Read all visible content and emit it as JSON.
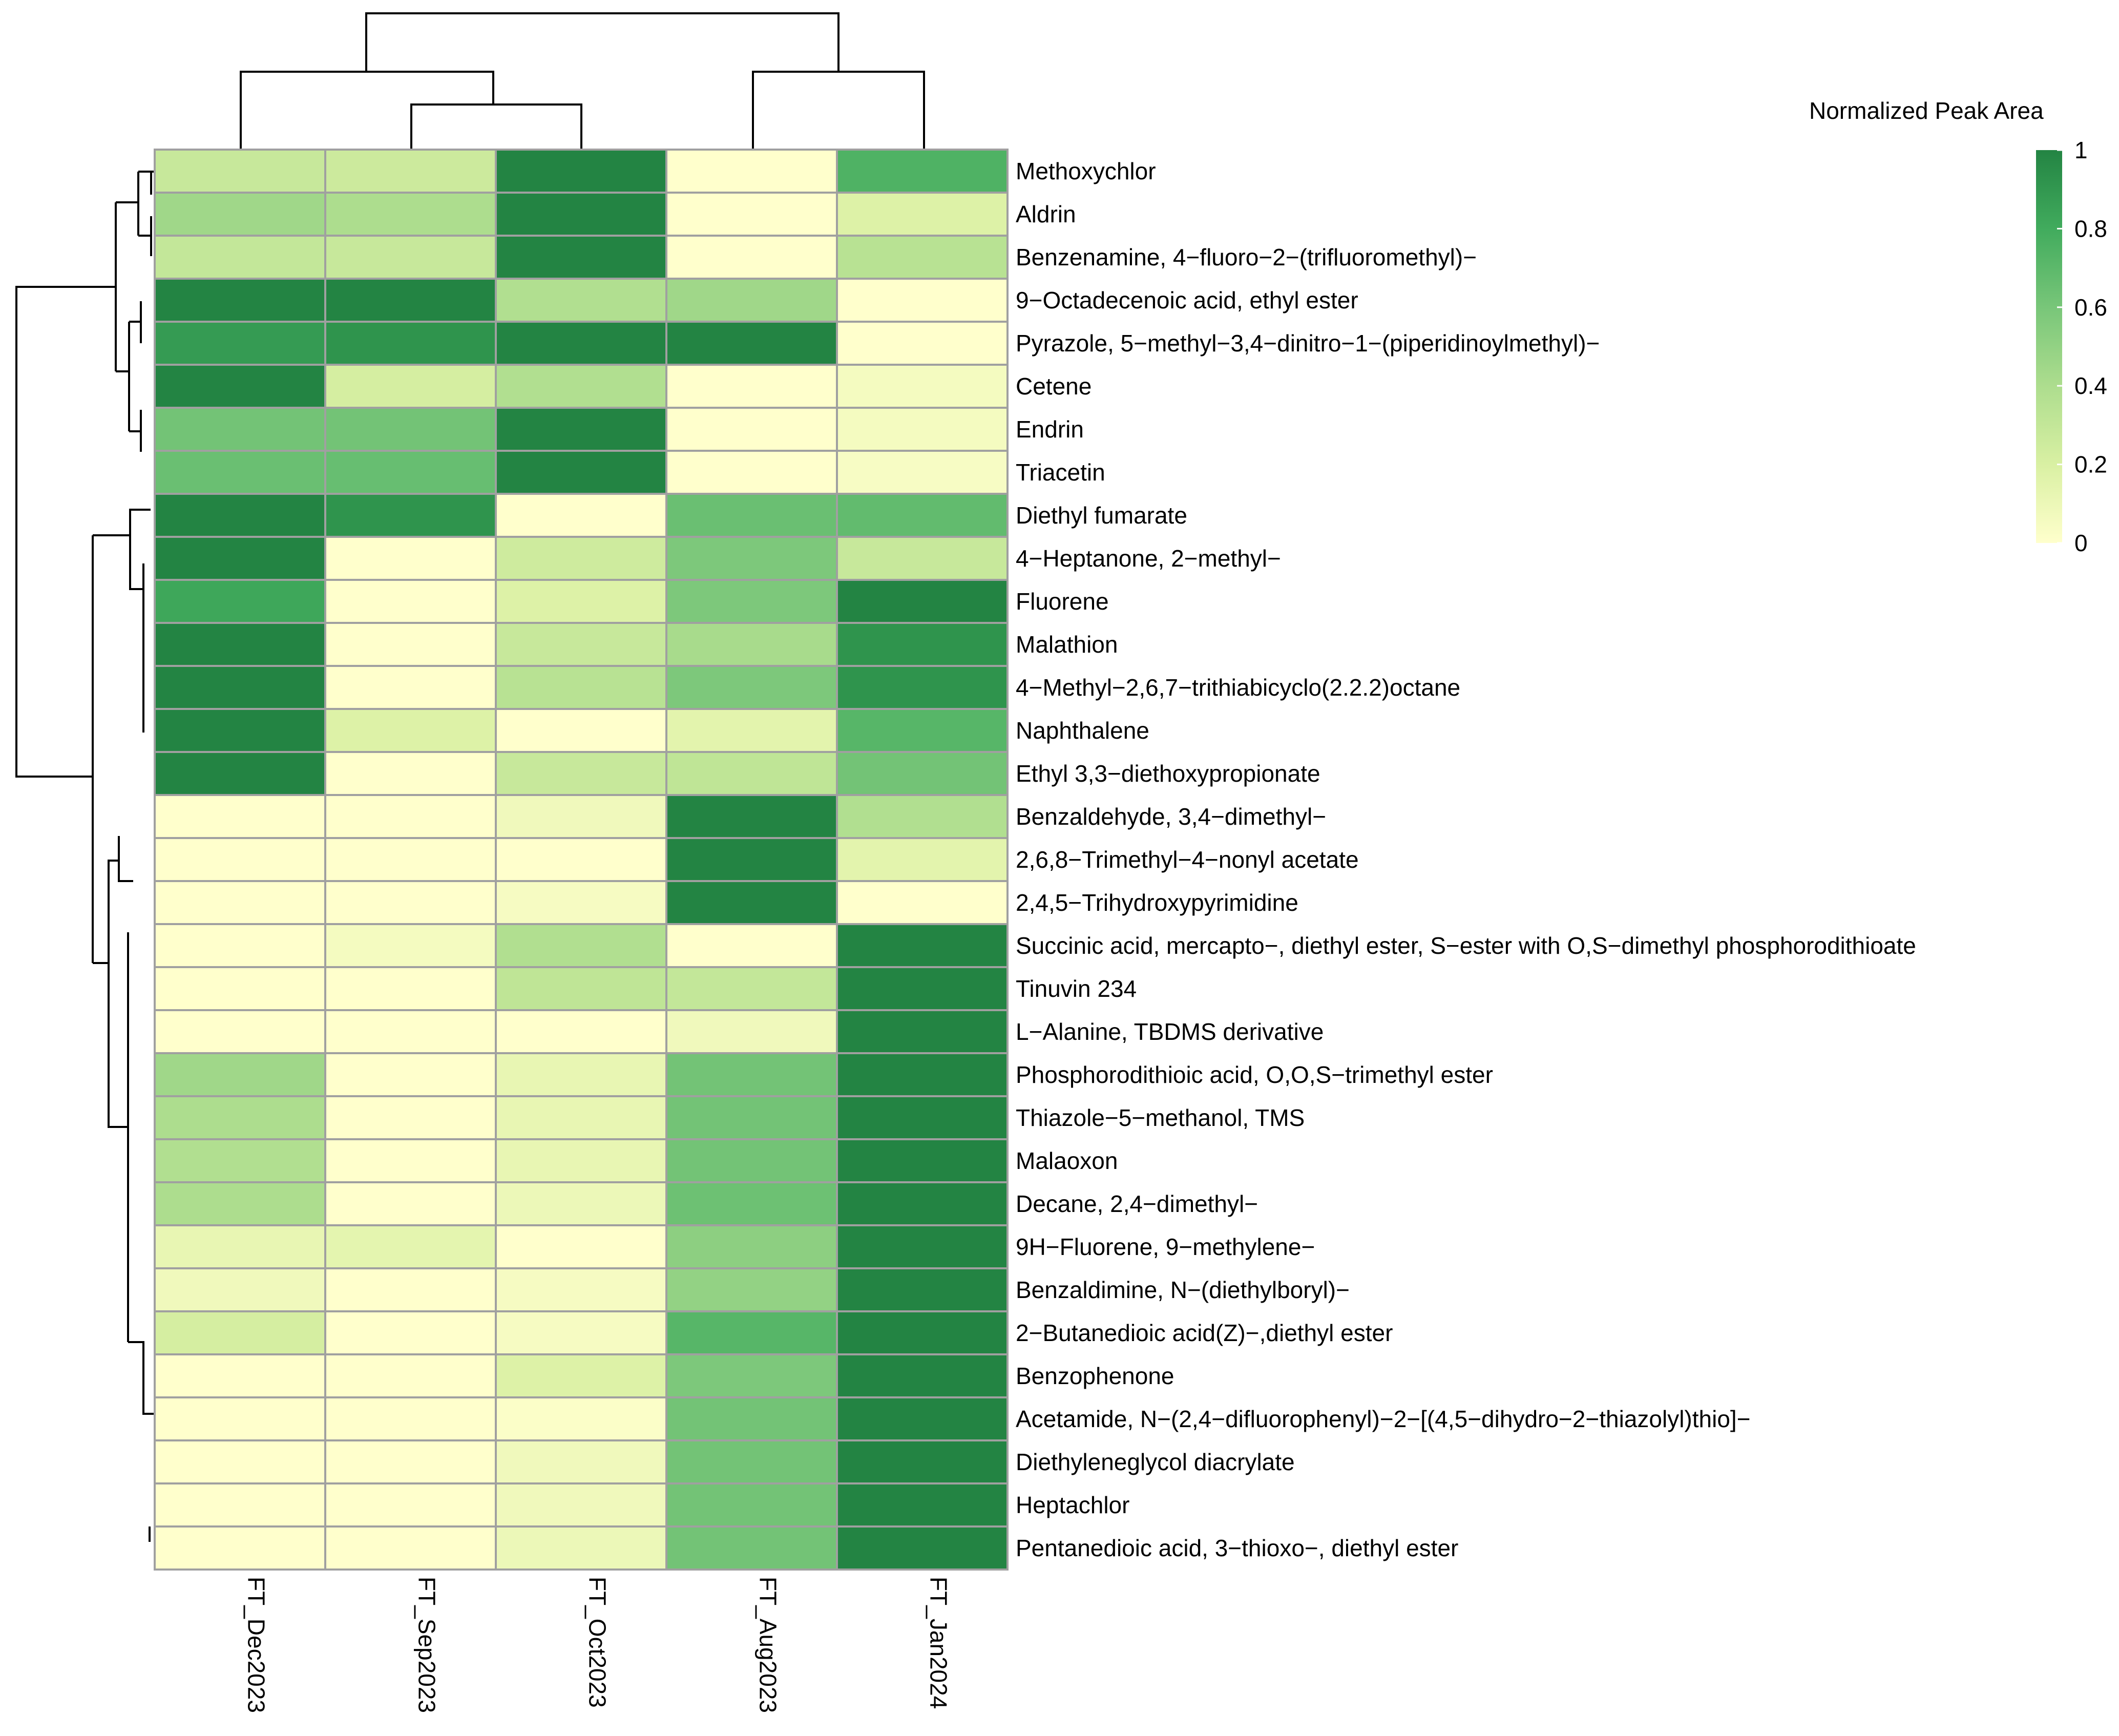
{
  "chart_data": {
    "type": "heatmap",
    "legend": {
      "title": "Normalized Peak Area",
      "ticks": [
        1,
        0.8,
        0.6,
        0.4,
        0.2,
        0
      ],
      "range": [
        0,
        1
      ],
      "colors": [
        "#ffffcc",
        "#d9f0a3",
        "#addd8e",
        "#78c679",
        "#41ab5d",
        "#238443"
      ]
    },
    "columns": [
      "FT_Dec2023",
      "FT_Sep2023",
      "FT_Oct2023",
      "FT_Aug2023",
      "FT_Jan2024"
    ],
    "rows": [
      "Methoxychlor",
      "Aldrin",
      "Benzenamine, 4−fluoro−2−(trifluoromethyl)−",
      "9−Octadecenoic acid, ethyl ester",
      "Pyrazole, 5−methyl−3,4−dinitro−1−(piperidinoylmethyl)−",
      "Cetene",
      "Endrin",
      "Triacetin",
      "Diethyl fumarate",
      "4−Heptanone, 2−methyl−",
      "Fluorene",
      "Malathion",
      "4−Methyl−2,6,7−trithiabicyclo(2.2.2)octane",
      "Naphthalene",
      "Ethyl 3,3−diethoxypropionate",
      "Benzaldehyde, 3,4−dimethyl−",
      "2,6,8−Trimethyl−4−nonyl acetate",
      "2,4,5−Trihydroxypyrimidine",
      "Succinic acid, mercapto−, diethyl ester, S−ester with O,S−dimethyl phosphorodithioate",
      "Tinuvin 234",
      "L−Alanine, TBDMS derivative",
      "Phosphorodithioic acid, O,O,S−trimethyl ester",
      "Thiazole−5−methanol, TMS",
      "Malaoxon",
      "Decane, 2,4−dimethyl−",
      "9H−Fluorene, 9−methylene−",
      "Benzaldimine, N−(diethylboryl)−",
      "2−Butanedioic acid(Z)−,diethyl ester",
      "Benzophenone",
      "Acetamide, N−(2,4−difluorophenyl)−2−[(4,5−dihydro−2−thiazolyl)thio]−",
      "Diethyleneglycol diacrylate",
      "Heptachlor",
      "Pentanedioic acid, 3−thioxo−, diethyl ester"
    ],
    "values": [
      [
        0.28,
        0.26,
        1.0,
        0.0,
        0.75
      ],
      [
        0.45,
        0.4,
        1.0,
        0.0,
        0.18
      ],
      [
        0.3,
        0.28,
        1.0,
        0.0,
        0.35
      ],
      [
        1.0,
        1.0,
        0.38,
        0.45,
        0.0
      ],
      [
        0.88,
        0.92,
        1.0,
        1.0,
        0.0
      ],
      [
        1.0,
        0.22,
        0.38,
        0.0,
        0.06
      ],
      [
        0.62,
        0.62,
        1.0,
        0.0,
        0.06
      ],
      [
        0.65,
        0.66,
        1.0,
        0.0,
        0.04
      ],
      [
        1.0,
        0.92,
        0.0,
        0.65,
        0.68
      ],
      [
        1.0,
        0.0,
        0.25,
        0.58,
        0.28
      ],
      [
        0.82,
        0.0,
        0.18,
        0.58,
        1.0
      ],
      [
        1.0,
        0.0,
        0.28,
        0.42,
        0.92
      ],
      [
        1.0,
        0.0,
        0.35,
        0.58,
        0.92
      ],
      [
        1.0,
        0.18,
        0.0,
        0.15,
        0.72
      ],
      [
        1.0,
        0.0,
        0.28,
        0.32,
        0.62
      ],
      [
        0.0,
        0.0,
        0.08,
        1.0,
        0.38
      ],
      [
        0.0,
        0.0,
        0.0,
        1.0,
        0.15
      ],
      [
        0.0,
        0.0,
        0.05,
        1.0,
        0.0
      ],
      [
        0.0,
        0.06,
        0.38,
        0.0,
        1.0
      ],
      [
        0.0,
        0.0,
        0.32,
        0.3,
        1.0
      ],
      [
        0.0,
        0.0,
        0.0,
        0.08,
        1.0
      ],
      [
        0.45,
        0.0,
        0.12,
        0.62,
        1.0
      ],
      [
        0.4,
        0.0,
        0.12,
        0.62,
        1.0
      ],
      [
        0.38,
        0.0,
        0.12,
        0.62,
        1.0
      ],
      [
        0.4,
        0.0,
        0.1,
        0.64,
        1.0
      ],
      [
        0.12,
        0.14,
        0.0,
        0.52,
        1.0
      ],
      [
        0.08,
        0.0,
        0.05,
        0.5,
        1.0
      ],
      [
        0.22,
        0.0,
        0.05,
        0.72,
        1.0
      ],
      [
        0.0,
        0.0,
        0.18,
        0.58,
        1.0
      ],
      [
        0.0,
        0.0,
        0.02,
        0.62,
        1.0
      ],
      [
        0.0,
        0.0,
        0.08,
        0.62,
        1.0
      ],
      [
        0.0,
        0.0,
        0.08,
        0.62,
        1.0
      ],
      [
        0.0,
        0.0,
        0.1,
        0.62,
        1.0
      ]
    ]
  }
}
